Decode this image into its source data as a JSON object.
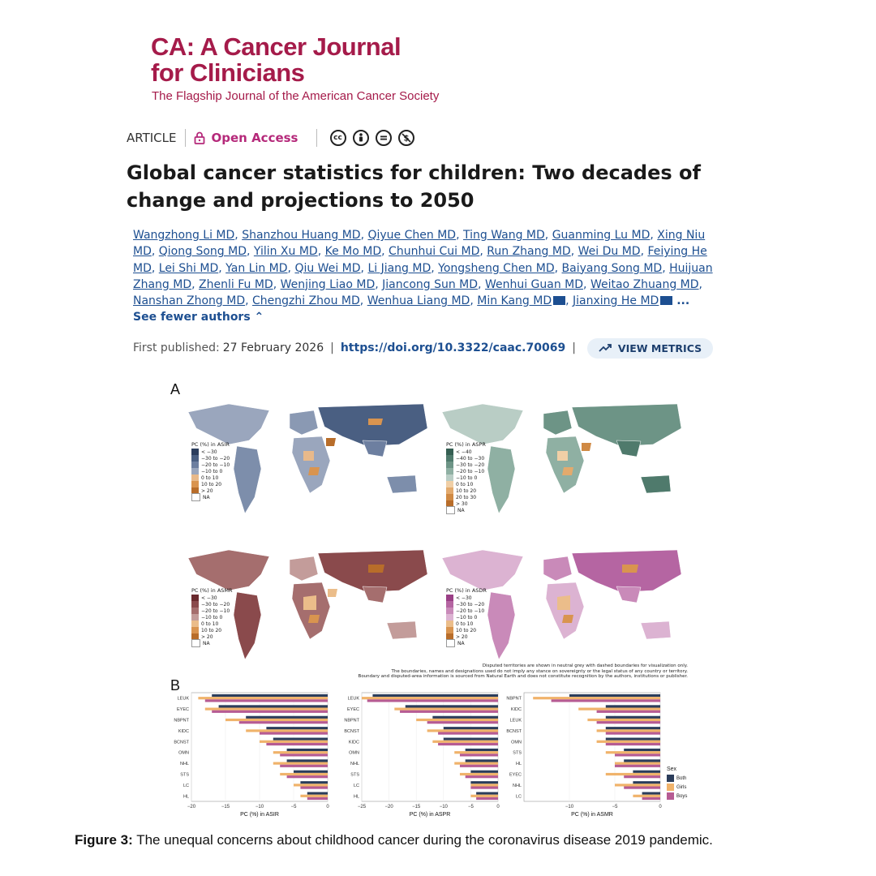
{
  "journal": {
    "title_line1": "CA: A Cancer Journal",
    "title_line2": "for Clinicians",
    "tagline": "The Flagship Journal of the American Cancer Society"
  },
  "meta": {
    "article_type": "ARTICLE",
    "open_access": "Open Access",
    "license_icons": [
      "cc-icon",
      "by-icon",
      "nd-icon",
      "nc-icon"
    ]
  },
  "paper_title": "Global cancer statistics for children: Two decades of change and projections to 2050",
  "authors": [
    "Wangzhong Li MD",
    "Shanzhou Huang MD",
    "Qiyue Chen MD",
    "Ting Wang MD",
    "Guanming Lu MD",
    "Xing Niu MD",
    "Qiong Song MD",
    "Yilin Xu MD",
    "Ke Mo MD",
    "Chunhui Cui MD",
    "Run Zhang MD",
    "Wei Du MD",
    "Feiying He MD",
    "Lei Shi MD",
    "Yan Lin MD",
    "Qiu Wei MD",
    "Li Jiang MD",
    "Yongsheng Chen MD",
    "Baiyang Song MD",
    "Huijuan Zhang MD",
    "Zhenli Fu MD",
    "Wenjing Liao MD",
    "Jiancong Sun MD",
    "Wenhui Guan MD",
    "Weitao Zhuang MD",
    "Nanshan Zhong MD",
    "Chengzhi Zhou MD",
    "Wenhua Liang MD",
    "Min Kang MD",
    "Jianxing He MD"
  ],
  "see_fewer": "... See fewer authors",
  "published": {
    "label": "First published:",
    "date": "27 February 2026",
    "doi": "https://doi.org/10.3322/caac.70069",
    "metrics_button": "VIEW METRICS"
  },
  "figure": {
    "panel_a_label": "A",
    "panel_b_label": "B",
    "maps": [
      {
        "legend_title": "PC (%) in ASIR",
        "palette": "blue",
        "labels": [
          "< −30",
          "−30 to −20",
          "−20 to −10",
          "−10 to 0",
          "0 to 10",
          "10 to 20",
          "> 20",
          "NA"
        ],
        "colors": [
          "#2c3e5e",
          "#4a5f82",
          "#6d7fa0",
          "#9aa6bd",
          "#e8b98a",
          "#d9944f",
          "#b86d2a",
          "#ffffff"
        ]
      },
      {
        "legend_title": "PC (%) in ASPR",
        "palette": "green",
        "labels": [
          "< −40",
          "−40 to −30",
          "−30 to −20",
          "−20 to −10",
          "−10 to 0",
          "0 to 10",
          "10 to 20",
          "20 to 30",
          "> 30",
          "NA"
        ],
        "colors": [
          "#355f52",
          "#4f7a6c",
          "#6d9486",
          "#8fb0a3",
          "#b9cdc5",
          "#f0cfa6",
          "#e3aa6d",
          "#d08a44",
          "#b86d2a",
          "#ffffff"
        ]
      },
      {
        "legend_title": "PC (%) in ASMR",
        "palette": "red",
        "labels": [
          "< −30",
          "−30 to −20",
          "−20 to −10",
          "−10 to 0",
          "0 to 10",
          "10 to 20",
          "> 20",
          "NA"
        ],
        "colors": [
          "#6a2a2e",
          "#8a4a4c",
          "#a56e6e",
          "#c39c9a",
          "#ebbd8a",
          "#d9944f",
          "#b86d2a",
          "#ffffff"
        ]
      },
      {
        "legend_title": "PC (%) in ASDR",
        "palette": "pink",
        "labels": [
          "< −30",
          "−30 to −20",
          "−20 to −10",
          "−10 to 0",
          "0 to 10",
          "10 to 20",
          "> 20",
          "NA"
        ],
        "colors": [
          "#9a3f86",
          "#b565a2",
          "#c98ab9",
          "#dcb3d2",
          "#ebbd8a",
          "#d9944f",
          "#b86d2a",
          "#ffffff"
        ]
      }
    ],
    "disclaimer": [
      "Disputed territories are shown in neutral grey with dashed boundaries for visualization only.",
      "The boundaries, names and designations used do not imply any stance on sovereignty or the legal status of any country or territory.",
      "Boundary and disputed-area information is sourced from Natural Earth and does not constitute recognition by the authors, institutions or publisher."
    ],
    "sex_legend": {
      "title": "Sex",
      "items": [
        "Both",
        "Girls",
        "Boys"
      ],
      "colors": [
        "#2b3d5b",
        "#f0b36b",
        "#b65b93"
      ]
    }
  },
  "chart_data": [
    {
      "type": "bar",
      "orientation": "horizontal",
      "xlabel": "PC (%) in ASIR",
      "xlim": [
        -20,
        0
      ],
      "xticks": [
        -20,
        -15,
        -10,
        -5,
        0
      ],
      "categories": [
        "LEUK",
        "EYEC",
        "NBPNT",
        "KIDC",
        "BCNST",
        "OMN",
        "NHL",
        "STS",
        "LC",
        "HL"
      ],
      "series": [
        {
          "name": "Both",
          "values": [
            -17,
            -16,
            -12,
            -9,
            -8,
            -6,
            -6,
            -5,
            -4,
            -3
          ]
        },
        {
          "name": "Girls",
          "values": [
            -19,
            -18,
            -15,
            -12,
            -10,
            -8,
            -8,
            -7,
            -5,
            -4
          ]
        },
        {
          "name": "Boys",
          "values": [
            -18,
            -17,
            -13,
            -10,
            -9,
            -7,
            -7,
            -6,
            -4,
            -3
          ]
        }
      ]
    },
    {
      "type": "bar",
      "orientation": "horizontal",
      "xlabel": "PC (%) in ASPR",
      "xlim": [
        -25,
        0
      ],
      "xticks": [
        -25,
        -20,
        -15,
        -10,
        -5,
        0
      ],
      "categories": [
        "LEUK",
        "EYEC",
        "NBPNT",
        "BCNST",
        "KIDC",
        "OMN",
        "NHL",
        "STS",
        "LC",
        "HL"
      ],
      "series": [
        {
          "name": "Both",
          "values": [
            -23,
            -17,
            -12,
            -10,
            -10,
            -6,
            -6,
            -5,
            -5,
            -4
          ]
        },
        {
          "name": "Girls",
          "values": [
            -25,
            -19,
            -15,
            -13,
            -12,
            -8,
            -8,
            -7,
            -5,
            -5
          ]
        },
        {
          "name": "Boys",
          "values": [
            -24,
            -18,
            -13,
            -11,
            -11,
            -7,
            -7,
            -6,
            -5,
            -4
          ]
        }
      ]
    },
    {
      "type": "bar",
      "orientation": "horizontal",
      "xlabel": "PC (%) in ASMR",
      "xlim": [
        -15,
        0
      ],
      "xticks": [
        -10,
        -5,
        0
      ],
      "categories": [
        "NBPNT",
        "KIDC",
        "LEUK",
        "BCNST",
        "OMN",
        "STS",
        "HL",
        "EYEC",
        "NHL",
        "LC"
      ],
      "series": [
        {
          "name": "Both",
          "values": [
            -10,
            -6,
            -6,
            -6,
            -6,
            -4,
            -4,
            -3,
            -3,
            -2
          ]
        },
        {
          "name": "Girls",
          "values": [
            -14,
            -9,
            -8,
            -7,
            -7,
            -6,
            -5,
            -6,
            -5,
            -3
          ]
        },
        {
          "name": "Boys",
          "values": [
            -12,
            -7,
            -7,
            -6,
            -6,
            -5,
            -5,
            -4,
            -4,
            -2
          ]
        }
      ]
    }
  ],
  "caption": {
    "label": "Figure 3:",
    "text": " The unequal concerns about childhood cancer during the coronavirus disease 2019 pandemic."
  }
}
